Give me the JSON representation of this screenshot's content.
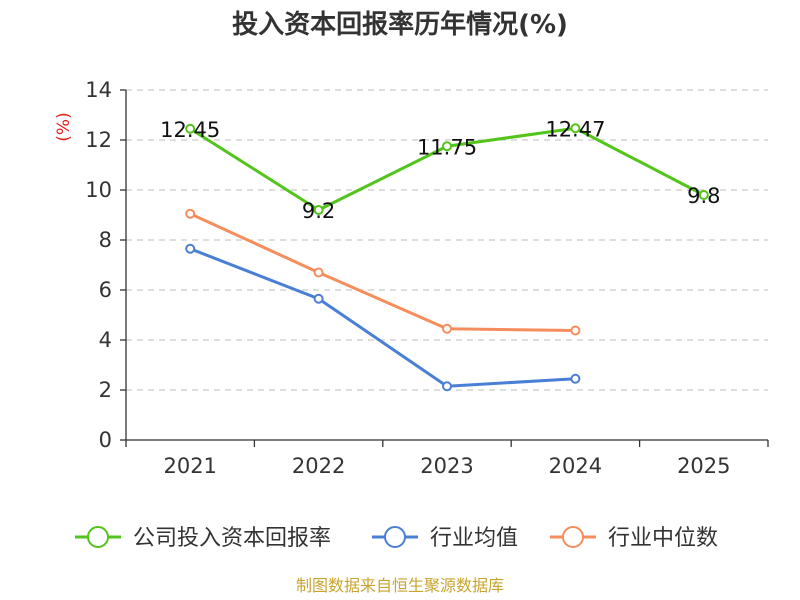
{
  "chart_data": {
    "type": "line",
    "title": "投入资本回报率历年情况(%)",
    "ylabel": "(%)",
    "xlabel": "",
    "categories": [
      "2021",
      "2022",
      "2023",
      "2024",
      "2025"
    ],
    "ylim": [
      0,
      14
    ],
    "yticks": [
      0,
      2,
      4,
      6,
      8,
      10,
      12,
      14
    ],
    "grid": true,
    "legend_position": "bottom",
    "series": [
      {
        "name": "公司投入资本回报率",
        "color": "#52c41a",
        "values": [
          12.45,
          9.2,
          11.75,
          12.47,
          9.8
        ],
        "labels": [
          "12.45",
          "9.2",
          "11.75",
          "12.47",
          "9.8"
        ]
      },
      {
        "name": "行业均值",
        "color": "#4a7fd6",
        "values": [
          7.65,
          5.65,
          2.15,
          2.45,
          null
        ]
      },
      {
        "name": "行业中位数",
        "color": "#f58d5c",
        "values": [
          9.05,
          6.7,
          4.45,
          4.38,
          null
        ]
      }
    ],
    "source": "制图数据来自恒生聚源数据库"
  }
}
